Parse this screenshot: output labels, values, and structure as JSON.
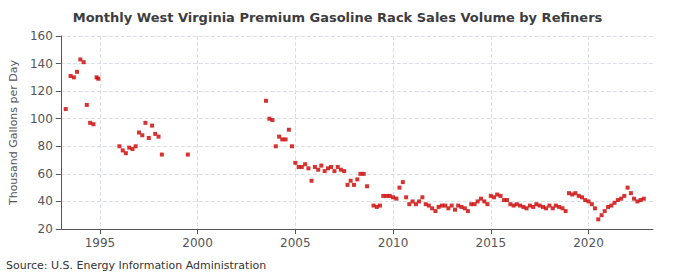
{
  "chart_data": {
    "type": "scatter",
    "title": "Monthly West Virginia Premium Gasoline Rack Sales Volume by Refiners",
    "ylabel": "Thousand Gallons per Day",
    "annotation": "Source: U.S. Energy Information Administration",
    "color": "#cc0000",
    "marker": "square",
    "grid": true,
    "xlim": [
      1993.0,
      2023.3
    ],
    "xticks": [
      1995,
      2000,
      2005,
      2010,
      2015,
      2020
    ],
    "ylim": [
      20,
      160
    ],
    "yticks": [
      20,
      40,
      60,
      80,
      100,
      120,
      140,
      160
    ],
    "x": [
      1993.25,
      1993.5,
      1993.67,
      1993.83,
      1994.0,
      1994.17,
      1994.33,
      1994.5,
      1994.67,
      1994.83,
      1994.92,
      1996.0,
      1996.17,
      1996.33,
      1996.5,
      1996.67,
      1996.83,
      1997.0,
      1997.17,
      1997.33,
      1997.5,
      1997.67,
      1997.83,
      1998.0,
      1998.17,
      1999.5,
      2003.5,
      2003.67,
      2003.83,
      2004.0,
      2004.17,
      2004.33,
      2004.5,
      2004.67,
      2004.83,
      2005.0,
      2005.17,
      2005.33,
      2005.5,
      2005.67,
      2005.83,
      2006.0,
      2006.17,
      2006.33,
      2006.5,
      2006.67,
      2006.83,
      2007.0,
      2007.17,
      2007.33,
      2007.5,
      2007.67,
      2007.83,
      2008.0,
      2008.17,
      2008.33,
      2008.5,
      2008.67,
      2009.0,
      2009.17,
      2009.33,
      2009.5,
      2009.67,
      2009.83,
      2010.0,
      2010.17,
      2010.33,
      2010.5,
      2010.67,
      2010.83,
      2011.0,
      2011.17,
      2011.33,
      2011.5,
      2011.67,
      2011.83,
      2012.0,
      2012.17,
      2012.33,
      2012.5,
      2012.67,
      2012.83,
      2013.0,
      2013.17,
      2013.33,
      2013.5,
      2013.67,
      2013.83,
      2014.0,
      2014.17,
      2014.33,
      2014.5,
      2014.67,
      2014.83,
      2015.0,
      2015.17,
      2015.33,
      2015.5,
      2015.67,
      2015.83,
      2016.0,
      2016.17,
      2016.33,
      2016.5,
      2016.67,
      2016.83,
      2017.0,
      2017.17,
      2017.33,
      2017.5,
      2017.67,
      2017.83,
      2018.0,
      2018.17,
      2018.33,
      2018.5,
      2018.67,
      2018.83,
      2019.0,
      2019.17,
      2019.33,
      2019.5,
      2019.67,
      2019.83,
      2020.0,
      2020.17,
      2020.33,
      2020.5,
      2020.67,
      2020.83,
      2021.0,
      2021.17,
      2021.33,
      2021.5,
      2021.67,
      2021.83,
      2022.0,
      2022.17,
      2022.33,
      2022.5,
      2022.67,
      2022.83
    ],
    "values": [
      107,
      131,
      130,
      134,
      143,
      141,
      110,
      97,
      96,
      130,
      129,
      80,
      77,
      75,
      79,
      78,
      80,
      90,
      88,
      97,
      86,
      95,
      89,
      87,
      74,
      74,
      113,
      100,
      99,
      80,
      87,
      85,
      85,
      92,
      80,
      68,
      65,
      65,
      67,
      64,
      55,
      65,
      63,
      66,
      62,
      64,
      65,
      62,
      65,
      63,
      62,
      52,
      55,
      52,
      56,
      60,
      60,
      51,
      37,
      36,
      37,
      44,
      44,
      44,
      43,
      42,
      50,
      54,
      43,
      38,
      40,
      38,
      40,
      43,
      38,
      37,
      35,
      33,
      36,
      37,
      37,
      35,
      37,
      34,
      37,
      36,
      35,
      33,
      38,
      38,
      40,
      42,
      40,
      38,
      44,
      43,
      45,
      44,
      41,
      41,
      38,
      37,
      38,
      37,
      36,
      35,
      37,
      36,
      38,
      37,
      36,
      35,
      37,
      35,
      37,
      36,
      35,
      33,
      46,
      45,
      46,
      44,
      43,
      41,
      40,
      38,
      35,
      27,
      30,
      33,
      36,
      37,
      39,
      41,
      42,
      44,
      50,
      46,
      42,
      40,
      41,
      42
    ]
  }
}
